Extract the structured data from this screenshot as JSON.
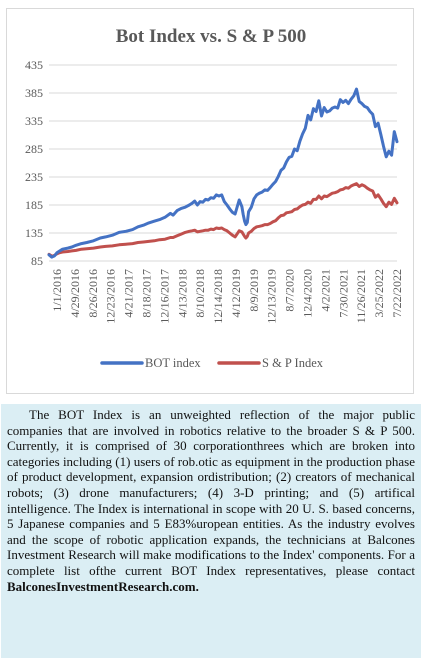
{
  "chart_data": {
    "type": "line",
    "title": "Bot Index vs. S & P 500",
    "xlabel": "",
    "ylabel": "",
    "ylim": [
      85,
      435
    ],
    "yticks": [
      85,
      135,
      185,
      235,
      285,
      335,
      385,
      435
    ],
    "xtick_labels": [
      "1/1/2016",
      "4/29/2016",
      "8/26/2016",
      "12/23/2016",
      "4/21/2017",
      "8/18/2017",
      "12/16/2017",
      "4/13/2018",
      "8/10/2018",
      "12/14/2018",
      "4/12/2019",
      "8/9/2019",
      "12/13/2019",
      "8/7/2020",
      "12/4/2020",
      "4/2/2021",
      "7/30/2021",
      "11/26/2021",
      "3/25/2022",
      "7/22/2022"
    ],
    "legend_position": "bottom",
    "grid": "horizontal",
    "colors": {
      "bot": "#4472c4",
      "sp": "#c0504d"
    },
    "series": [
      {
        "name": "BOT index",
        "x": [
          0,
          2,
          3,
          4,
          6,
          8,
          10,
          14,
          17,
          20,
          24,
          28,
          33,
          38,
          42,
          47,
          52,
          57,
          62,
          66,
          70,
          74,
          78,
          82,
          86,
          90,
          92,
          95,
          98,
          101,
          104,
          106,
          108,
          110,
          112,
          114,
          116,
          118,
          120,
          122,
          124,
          126,
          128,
          130,
          132,
          134,
          136,
          138,
          141,
          143,
          144,
          145,
          146,
          147,
          148,
          150,
          152,
          154,
          156,
          158,
          160,
          162,
          164,
          166,
          168,
          170,
          172,
          174,
          176,
          178,
          180,
          182,
          184,
          186,
          188,
          190,
          192,
          194,
          196,
          198,
          200,
          202,
          204,
          206,
          208,
          210,
          212,
          214,
          216,
          218,
          220,
          222,
          224,
          226,
          228,
          230,
          232,
          234,
          236,
          238,
          240,
          242,
          244,
          246,
          248,
          250,
          252,
          254,
          256,
          258
        ],
        "y": [
          96,
          92,
          93,
          94,
          100,
          103,
          106,
          108,
          110,
          113,
          116,
          118,
          121,
          126,
          128,
          131,
          136,
          138,
          141,
          146,
          149,
          153,
          156,
          159,
          163,
          170,
          167,
          175,
          179,
          181,
          185,
          188,
          192,
          185,
          191,
          190,
          195,
          194,
          198,
          197,
          203,
          201,
          203,
          191,
          185,
          178,
          172,
          169,
          194,
          182,
          168,
          156,
          150,
          154,
          173,
          181,
          196,
          203,
          206,
          208,
          212,
          211,
          216,
          222,
          227,
          236,
          247,
          251,
          262,
          270,
          272,
          285,
          282,
          299,
          312,
          322,
          345,
          337,
          357,
          352,
          371,
          344,
          359,
          351,
          353,
          358,
          360,
          358,
          373,
          368,
          372,
          366,
          374,
          380,
          392,
          370,
          366,
          361,
          359,
          352,
          347,
          325,
          331,
          311,
          290,
          271,
          281,
          274,
          316,
          298
        ],
        "values_note": "x is sequential trading-week index along the category axis"
      },
      {
        "name": "S & P Index",
        "x": [
          0,
          2,
          3,
          4,
          6,
          8,
          10,
          14,
          17,
          20,
          24,
          28,
          33,
          38,
          42,
          47,
          52,
          57,
          62,
          66,
          70,
          74,
          78,
          82,
          86,
          90,
          92,
          95,
          98,
          101,
          104,
          106,
          108,
          110,
          112,
          114,
          116,
          118,
          120,
          122,
          124,
          126,
          128,
          130,
          132,
          134,
          136,
          138,
          141,
          143,
          144,
          145,
          146,
          147,
          148,
          150,
          152,
          154,
          156,
          158,
          160,
          162,
          164,
          166,
          168,
          170,
          172,
          174,
          176,
          178,
          180,
          182,
          184,
          186,
          188,
          190,
          192,
          194,
          196,
          198,
          200,
          202,
          204,
          206,
          208,
          210,
          212,
          214,
          216,
          218,
          220,
          222,
          224,
          226,
          228,
          230,
          232,
          234,
          236,
          238,
          240,
          242,
          244,
          246,
          248,
          250,
          252,
          254,
          256,
          258
        ],
        "y": [
          97,
          94,
          94,
          95,
          98,
          100,
          101,
          102,
          103,
          104,
          106,
          107,
          108,
          110,
          111,
          112,
          114,
          115,
          116,
          118,
          119,
          120,
          121,
          123,
          124,
          127,
          127,
          130,
          133,
          136,
          138,
          139,
          140,
          137,
          138,
          139,
          140,
          140,
          142,
          141,
          144,
          143,
          144,
          141,
          139,
          135,
          131,
          128,
          139,
          137,
          133,
          129,
          126,
          129,
          135,
          138,
          143,
          146,
          147,
          148,
          150,
          150,
          152,
          155,
          157,
          162,
          166,
          167,
          171,
          172,
          173,
          177,
          178,
          182,
          185,
          186,
          190,
          188,
          195,
          195,
          201,
          196,
          201,
          200,
          203,
          206,
          207,
          209,
          212,
          213,
          216,
          215,
          219,
          221,
          223,
          218,
          221,
          219,
          215,
          212,
          210,
          199,
          203,
          196,
          188,
          182,
          190,
          186,
          197,
          189
        ]
      }
    ]
  },
  "description": {
    "body": "The BOT Index is an unweighted reflection of the major public companies that are involved in robotics relative to the broader S & P 500. Currently, it is comprised of 30 corporationthrees which are broken into categories including (1) users of rob.otic as equipment in the production phase of product development, expansion ordistribution; (2) creators of mechanical robots; (3) drone manufacturers; (4) 3-D printing; and (5) artifical intelligence. The Index is international in scope with 20 U. S. based concerns, 5 Japanese companies and 5 E83%uropean entities. As the industry evolves and the scope of robotic application expands, the technicians at Balcones Investment Research will make modifications to the Index' components. For a  complete list ofthe current BOT Index representatives, please contact",
    "contact": "BalconesInvestmentResearch.com."
  }
}
